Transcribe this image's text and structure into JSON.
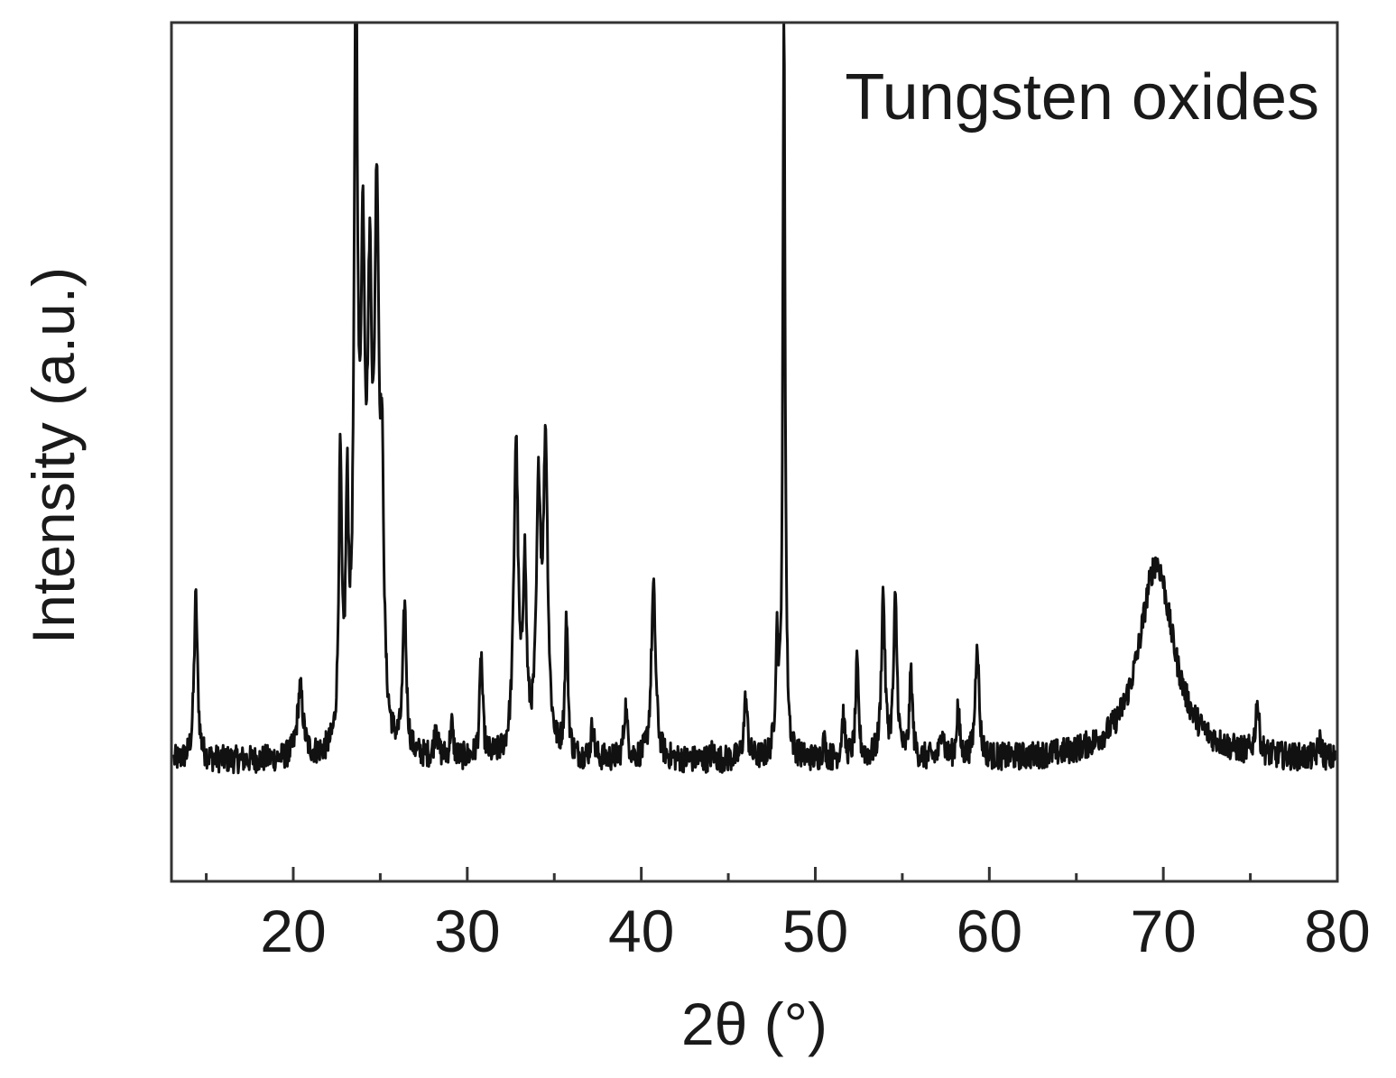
{
  "chart_data": {
    "type": "line",
    "title": "",
    "annotation": "Tungsten oxides",
    "xlabel": "2θ (°)",
    "ylabel": "Intensity (a.u.)",
    "xlim": [
      13,
      80
    ],
    "ylim": [
      0,
      100
    ],
    "x_ticks": [
      20,
      30,
      40,
      50,
      60,
      70,
      80
    ],
    "x_tick_labels": [
      "20",
      "30",
      "40",
      "50",
      "60",
      "70",
      "80"
    ],
    "grid": false,
    "baseline": 14,
    "peaks": [
      {
        "x": 14.4,
        "y": 33,
        "w": 0.12
      },
      {
        "x": 20.4,
        "y": 22,
        "w": 0.2
      },
      {
        "x": 22.7,
        "y": 47,
        "w": 0.1
      },
      {
        "x": 23.1,
        "y": 40,
        "w": 0.1
      },
      {
        "x": 23.6,
        "y": 100,
        "w": 0.12
      },
      {
        "x": 24.0,
        "y": 65,
        "w": 0.15
      },
      {
        "x": 24.4,
        "y": 60,
        "w": 0.15
      },
      {
        "x": 24.8,
        "y": 73,
        "w": 0.15
      },
      {
        "x": 25.1,
        "y": 40,
        "w": 0.12
      },
      {
        "x": 26.4,
        "y": 31,
        "w": 0.12
      },
      {
        "x": 28.2,
        "y": 18,
        "w": 0.1
      },
      {
        "x": 29.1,
        "y": 18,
        "w": 0.1
      },
      {
        "x": 30.8,
        "y": 26,
        "w": 0.1
      },
      {
        "x": 32.8,
        "y": 50,
        "w": 0.15
      },
      {
        "x": 33.3,
        "y": 35,
        "w": 0.12
      },
      {
        "x": 34.1,
        "y": 43,
        "w": 0.15
      },
      {
        "x": 34.5,
        "y": 49,
        "w": 0.15
      },
      {
        "x": 35.7,
        "y": 30,
        "w": 0.1
      },
      {
        "x": 37.2,
        "y": 18,
        "w": 0.1
      },
      {
        "x": 39.1,
        "y": 20,
        "w": 0.12
      },
      {
        "x": 40.7,
        "y": 34,
        "w": 0.15
      },
      {
        "x": 44.1,
        "y": 15,
        "w": 0.1
      },
      {
        "x": 46.0,
        "y": 21,
        "w": 0.12
      },
      {
        "x": 47.8,
        "y": 27,
        "w": 0.1
      },
      {
        "x": 48.2,
        "y": 100,
        "w": 0.08
      },
      {
        "x": 50.5,
        "y": 16,
        "w": 0.1
      },
      {
        "x": 51.6,
        "y": 19,
        "w": 0.1
      },
      {
        "x": 52.4,
        "y": 25,
        "w": 0.1
      },
      {
        "x": 53.9,
        "y": 33,
        "w": 0.12
      },
      {
        "x": 54.6,
        "y": 32,
        "w": 0.12
      },
      {
        "x": 55.5,
        "y": 24,
        "w": 0.1
      },
      {
        "x": 57.3,
        "y": 18,
        "w": 0.1
      },
      {
        "x": 58.2,
        "y": 20,
        "w": 0.1
      },
      {
        "x": 59.3,
        "y": 28,
        "w": 0.12
      },
      {
        "x": 69.6,
        "y": 37,
        "w": 1.2
      },
      {
        "x": 75.4,
        "y": 20,
        "w": 0.12
      },
      {
        "x": 79.0,
        "y": 16,
        "w": 0.12
      }
    ]
  }
}
